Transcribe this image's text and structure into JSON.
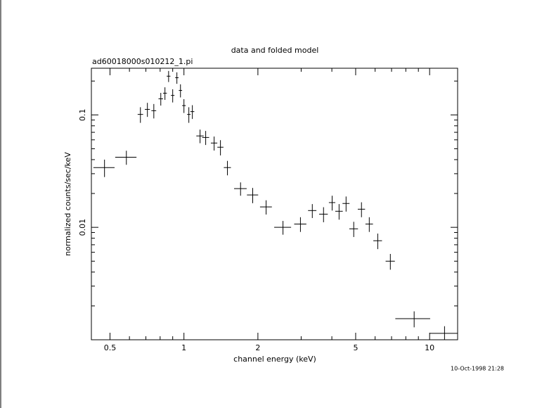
{
  "chart_data": {
    "type": "scatter",
    "title": "data and folded model",
    "subtitle": "ad60018000s010212_1.pi",
    "x_label": "channel energy (keV)",
    "y_label": "normalized counts/sec/keV",
    "footnote": "10-Oct-1998 21:28",
    "xlog": true,
    "ylog": true,
    "color": "#000000",
    "xlim": [
      0.42,
      13
    ],
    "ylim": [
      0.001,
      0.26
    ],
    "xticks": [
      0.5,
      1,
      2,
      5,
      10
    ],
    "xminorticks": [
      0.6,
      0.7,
      0.8,
      0.9,
      3,
      4,
      6,
      7,
      8,
      9
    ],
    "yticks": [
      0.01,
      0.1
    ],
    "yminorticks": [
      0.002,
      0.003,
      0.004,
      0.005,
      0.006,
      0.007,
      0.008,
      0.009,
      0.02,
      0.03,
      0.04,
      0.05,
      0.06,
      0.07,
      0.08,
      0.09,
      0.2
    ],
    "x": [
      0.475,
      0.583,
      0.665,
      0.71,
      0.754,
      0.805,
      0.837,
      0.866,
      0.9,
      0.936,
      0.968,
      1.0,
      1.047,
      1.082,
      1.163,
      1.226,
      1.327,
      1.408,
      1.503,
      1.7,
      1.905,
      2.16,
      2.53,
      2.98,
      3.33,
      3.7,
      4.01,
      4.28,
      4.57,
      4.91,
      5.28,
      5.68,
      6.15,
      6.92,
      8.65,
      11.5
    ],
    "xerr": [
      0.047,
      0.058,
      0.017,
      0.017,
      0.017,
      0.017,
      0.015,
      0.015,
      0.015,
      0.015,
      0.015,
      0.017,
      0.017,
      0.02,
      0.04,
      0.04,
      0.04,
      0.04,
      0.05,
      0.1,
      0.1,
      0.12,
      0.2,
      0.17,
      0.13,
      0.15,
      0.12,
      0.15,
      0.15,
      0.2,
      0.18,
      0.2,
      0.25,
      0.3,
      1.4,
      1.5
    ],
    "values": [
      0.034,
      0.042,
      0.101,
      0.112,
      0.109,
      0.139,
      0.156,
      0.221,
      0.149,
      0.214,
      0.165,
      0.121,
      0.101,
      0.107,
      0.065,
      0.063,
      0.0562,
      0.0516,
      0.034,
      0.0221,
      0.0194,
      0.0152,
      0.01,
      0.0107,
      0.0141,
      0.0131,
      0.0166,
      0.0139,
      0.0163,
      0.0097,
      0.0145,
      0.0107,
      0.0076,
      0.005,
      0.00154,
      0.00114
    ],
    "yerr": [
      0.006,
      0.006,
      0.016,
      0.016,
      0.016,
      0.018,
      0.02,
      0.025,
      0.02,
      0.025,
      0.022,
      0.017,
      0.016,
      0.015,
      0.009,
      0.009,
      0.008,
      0.008,
      0.005,
      0.003,
      0.003,
      0.0022,
      0.0014,
      0.0016,
      0.002,
      0.002,
      0.0025,
      0.0022,
      0.0025,
      0.0015,
      0.0022,
      0.0016,
      0.0012,
      0.0008,
      0.00025,
      0.00018
    ]
  }
}
